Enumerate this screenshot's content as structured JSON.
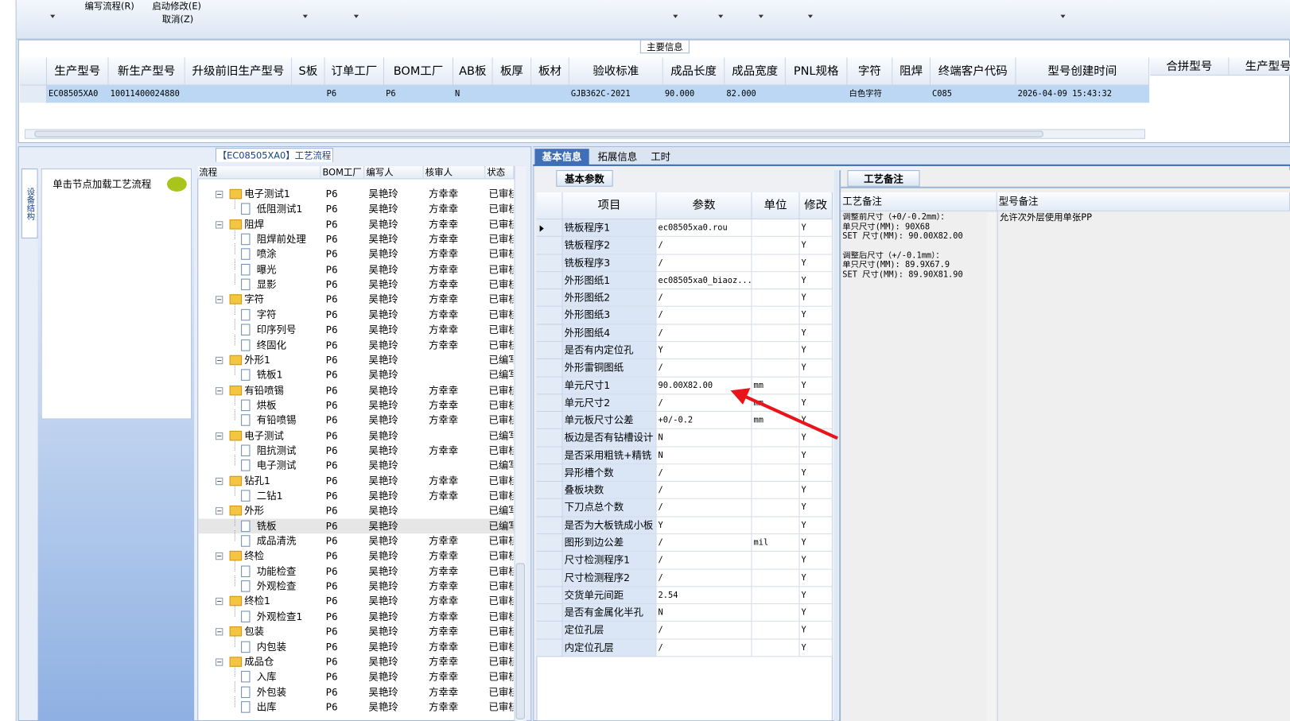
{
  "toolbar": {
    "items": [
      "编写流程(R)",
      "启动修改(E)",
      "取消(Z)"
    ]
  },
  "main_info": {
    "title": "主要信息",
    "columns": [
      "生产型号",
      "新生产型号",
      "升级前旧生产型号",
      "S板",
      "订单工厂",
      "BOM工厂",
      "AB板",
      "板厚",
      "板材",
      "验收标准",
      "成品长度",
      "成品宽度",
      "PNL规格",
      "字符",
      "阻焊",
      "终端客户代码",
      "型号创建时间"
    ],
    "rows": [
      [
        "EC08505XA0",
        "10011400024880",
        null,
        null,
        "P6",
        "P6",
        "N",
        null,
        null,
        "GJB362C-2021",
        "90.000",
        "82.000",
        null,
        "白色字符",
        null,
        "C085",
        "2026-04-09 15:43:32"
      ]
    ],
    "side_columns": [
      "合拼型号",
      "生产型号"
    ]
  },
  "process": {
    "title": "【EC08505XA0】工艺流程",
    "side_tab": "设备结构",
    "hint": "单击节点加载工艺流程",
    "columns": [
      "流程",
      "BOM工厂",
      "编写人",
      "核审人",
      "状态"
    ],
    "rows": [
      {
        "name": "电子测试1",
        "folder": true,
        "bom": "P6",
        "writer": "吴艳玲",
        "reviewer": "方幸幸",
        "status": "已审核"
      },
      {
        "name": "低阻测试1",
        "folder": false,
        "bom": "P6",
        "writer": "吴艳玲",
        "reviewer": "方幸幸",
        "status": "已审核"
      },
      {
        "name": "阻焊",
        "folder": true,
        "bom": "P6",
        "writer": "吴艳玲",
        "reviewer": "方幸幸",
        "status": "已审核"
      },
      {
        "name": "阻焊前处理",
        "folder": false,
        "bom": "P6",
        "writer": "吴艳玲",
        "reviewer": "方幸幸",
        "status": "已审核"
      },
      {
        "name": "喷涂",
        "folder": false,
        "bom": "P6",
        "writer": "吴艳玲",
        "reviewer": "方幸幸",
        "status": "已审核"
      },
      {
        "name": "曝光",
        "folder": false,
        "bom": "P6",
        "writer": "吴艳玲",
        "reviewer": "方幸幸",
        "status": "已审核"
      },
      {
        "name": "显影",
        "folder": false,
        "bom": "P6",
        "writer": "吴艳玲",
        "reviewer": "方幸幸",
        "status": "已审核"
      },
      {
        "name": "字符",
        "folder": true,
        "bom": "P6",
        "writer": "吴艳玲",
        "reviewer": "方幸幸",
        "status": "已审核"
      },
      {
        "name": "字符",
        "folder": false,
        "bom": "P6",
        "writer": "吴艳玲",
        "reviewer": "方幸幸",
        "status": "已审核"
      },
      {
        "name": "印序列号",
        "folder": false,
        "bom": "P6",
        "writer": "吴艳玲",
        "reviewer": "方幸幸",
        "status": "已审核"
      },
      {
        "name": "终固化",
        "folder": false,
        "bom": "P6",
        "writer": "吴艳玲",
        "reviewer": "方幸幸",
        "status": "已审核"
      },
      {
        "name": "外形1",
        "folder": true,
        "bom": "P6",
        "writer": "吴艳玲",
        "reviewer": null,
        "status": "已编写"
      },
      {
        "name": "铣板1",
        "folder": false,
        "bom": "P6",
        "writer": "吴艳玲",
        "reviewer": null,
        "status": "已编写"
      },
      {
        "name": "有铅喷锡",
        "folder": true,
        "bom": "P6",
        "writer": "吴艳玲",
        "reviewer": "方幸幸",
        "status": "已审核"
      },
      {
        "name": "烘板",
        "folder": false,
        "bom": "P6",
        "writer": "吴艳玲",
        "reviewer": "方幸幸",
        "status": "已审核"
      },
      {
        "name": "有铅喷锡",
        "folder": false,
        "bom": "P6",
        "writer": "吴艳玲",
        "reviewer": "方幸幸",
        "status": "已审核"
      },
      {
        "name": "电子测试",
        "folder": true,
        "bom": "P6",
        "writer": "吴艳玲",
        "reviewer": null,
        "status": "已编写"
      },
      {
        "name": "阻抗测试",
        "folder": false,
        "bom": "P6",
        "writer": "吴艳玲",
        "reviewer": "方幸幸",
        "status": "已审核"
      },
      {
        "name": "电子测试",
        "folder": false,
        "bom": "P6",
        "writer": "吴艳玲",
        "reviewer": null,
        "status": "已编写"
      },
      {
        "name": "钻孔1",
        "folder": true,
        "bom": "P6",
        "writer": "吴艳玲",
        "reviewer": "方幸幸",
        "status": "已审核"
      },
      {
        "name": "二钻1",
        "folder": false,
        "bom": "P6",
        "writer": "吴艳玲",
        "reviewer": "方幸幸",
        "status": "已审核"
      },
      {
        "name": "外形",
        "folder": true,
        "bom": "P6",
        "writer": "吴艳玲",
        "reviewer": null,
        "status": "已编写"
      },
      {
        "name": "铣板",
        "folder": false,
        "bom": "P6",
        "writer": "吴艳玲",
        "reviewer": null,
        "status": "已编写"
      },
      {
        "name": "成品清洗",
        "folder": false,
        "bom": "P6",
        "writer": "吴艳玲",
        "reviewer": "方幸幸",
        "status": "已审核"
      },
      {
        "name": "终检",
        "folder": true,
        "bom": "P6",
        "writer": "吴艳玲",
        "reviewer": "方幸幸",
        "status": "已审核"
      },
      {
        "name": "功能检查",
        "folder": false,
        "bom": "P6",
        "writer": "吴艳玲",
        "reviewer": "方幸幸",
        "status": "已审核"
      },
      {
        "name": "外观检查",
        "folder": false,
        "bom": "P6",
        "writer": "吴艳玲",
        "reviewer": "方幸幸",
        "status": "已审核"
      },
      {
        "name": "终检1",
        "folder": true,
        "bom": "P6",
        "writer": "吴艳玲",
        "reviewer": "方幸幸",
        "status": "已审核"
      },
      {
        "name": "外观检查1",
        "folder": false,
        "bom": "P6",
        "writer": "吴艳玲",
        "reviewer": "方幸幸",
        "status": "已审核"
      },
      {
        "name": "包装",
        "folder": true,
        "bom": "P6",
        "writer": "吴艳玲",
        "reviewer": "方幸幸",
        "status": "已审核"
      },
      {
        "name": "内包装",
        "folder": false,
        "bom": "P6",
        "writer": "吴艳玲",
        "reviewer": "方幸幸",
        "status": "已审核"
      },
      {
        "name": "成品仓",
        "folder": true,
        "bom": "P6",
        "writer": "吴艳玲",
        "reviewer": "方幸幸",
        "status": "已审核"
      },
      {
        "name": "入库",
        "folder": false,
        "bom": "P6",
        "writer": "吴艳玲",
        "reviewer": "方幸幸",
        "status": "已审核"
      },
      {
        "name": "外包装",
        "folder": false,
        "bom": "P6",
        "writer": "吴艳玲",
        "reviewer": "方幸幸",
        "status": "已审核"
      },
      {
        "name": "出库",
        "folder": false,
        "bom": "P6",
        "writer": "吴艳玲",
        "reviewer": "方幸幸",
        "status": "已审核"
      }
    ]
  },
  "params": {
    "tabs": [
      "基本信息",
      "拓展信息",
      "工时"
    ],
    "subtab": "基本参数",
    "columns": [
      "项目",
      "参数",
      "单位",
      "修改"
    ],
    "rows": [
      [
        "铣板程序1",
        "ec08505xa0.rou",
        null,
        "Y"
      ],
      [
        "铣板程序2",
        "/",
        null,
        "Y"
      ],
      [
        "铣板程序3",
        "/",
        null,
        "Y"
      ],
      [
        "外形图纸1",
        "ec08505xa0_biaoz...",
        null,
        "Y"
      ],
      [
        "外形图纸2",
        "/",
        null,
        "Y"
      ],
      [
        "外形图纸3",
        "/",
        null,
        "Y"
      ],
      [
        "外形图纸4",
        "/",
        null,
        "Y"
      ],
      [
        "是否有内定位孔",
        "Y",
        null,
        "Y"
      ],
      [
        "外形雷铜图纸",
        "/",
        null,
        "Y"
      ],
      [
        "单元尺寸1",
        "90.00X82.00",
        "mm",
        "Y"
      ],
      [
        "单元尺寸2",
        "/",
        "mm",
        "Y"
      ],
      [
        "单元板尺寸公差",
        "+0/-0.2",
        "mm",
        "Y"
      ],
      [
        "板边是否有钻槽设计",
        "N",
        null,
        "Y"
      ],
      [
        "是否采用粗铣+精铣",
        "N",
        null,
        "Y"
      ],
      [
        "异形槽个数",
        "/",
        null,
        "Y"
      ],
      [
        "叠板块数",
        "/",
        null,
        "Y"
      ],
      [
        "下刀点总个数",
        "/",
        null,
        "Y"
      ],
      [
        "是否为大板铣成小板",
        "Y",
        null,
        "Y"
      ],
      [
        "图形到边公差",
        "/",
        "mil",
        "Y"
      ],
      [
        "尺寸检测程序1",
        "/",
        null,
        "Y"
      ],
      [
        "尺寸检测程序2",
        "/",
        null,
        "Y"
      ],
      [
        "交货单元间距",
        "2.54",
        null,
        "Y"
      ],
      [
        "是否有金属化半孔",
        "N",
        null,
        "Y"
      ],
      [
        "定位孔层",
        "/",
        null,
        "Y"
      ],
      [
        "内定位孔层",
        "/",
        null,
        "Y"
      ]
    ]
  },
  "remarks": {
    "tab": "工艺备注",
    "columns": [
      "工艺备注",
      "型号备注"
    ],
    "craft_lines": [
      "调整前尺寸（+0/-0.2mm）：",
      "单只尺寸(MM): 90X68",
      "SET 尺寸(MM): 90.00X82.00",
      "调整后尺寸（+/-0.1mm）：",
      "单只尺寸(MM): 89.9X67.9",
      "SET 尺寸(MM): 89.90X81.90"
    ],
    "model_lines": [
      "允许次外层使用单张PP"
    ]
  }
}
